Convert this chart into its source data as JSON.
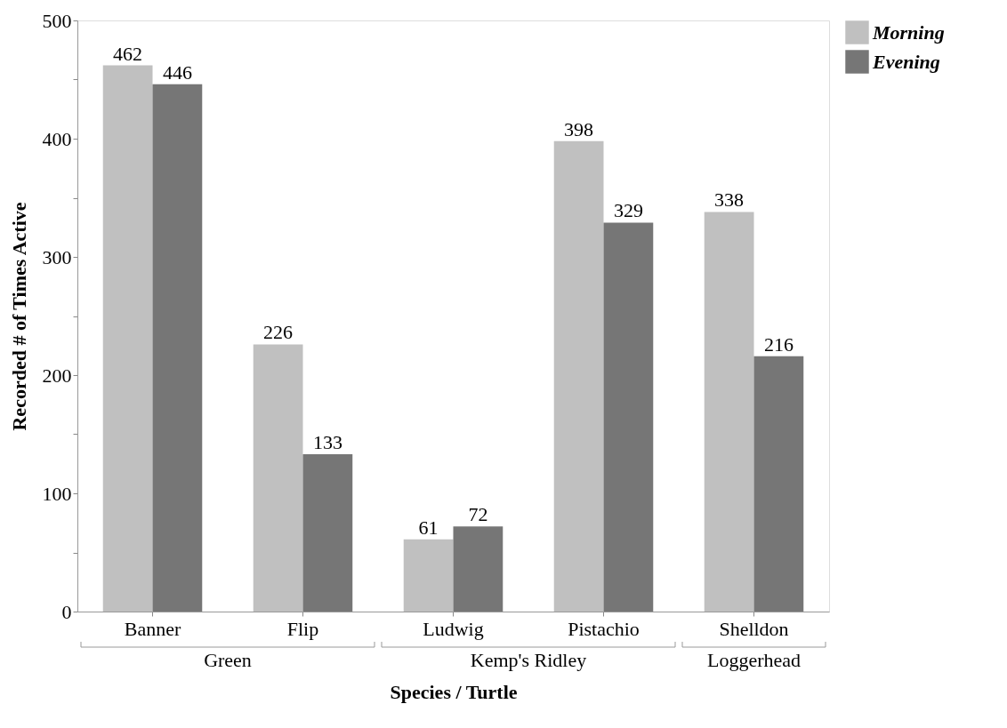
{
  "chart_data": {
    "type": "bar",
    "xlabel": "Species / Turtle",
    "ylabel": "Recorded # of Times Active",
    "categories": [
      "Banner",
      "Flip",
      "Ludwig",
      "Pistachio",
      "Shelldon"
    ],
    "series": [
      {
        "name": "Morning",
        "color": "#c0c0c0",
        "values": [
          462,
          226,
          61,
          398,
          338
        ]
      },
      {
        "name": "Evening",
        "color": "#767676",
        "values": [
          446,
          133,
          72,
          329,
          216
        ]
      }
    ],
    "ylim": [
      0,
      500
    ],
    "yticks": [
      0,
      {
        "value": 50,
        "label": null
      },
      100,
      {
        "value": 150,
        "label": null
      },
      200,
      {
        "value": 250,
        "label": null
      },
      300,
      {
        "value": 350,
        "label": null
      },
      400,
      {
        "value": 450,
        "label": null
      },
      500
    ],
    "data_labels": true,
    "grid": false,
    "legend": "top right",
    "annotations": [
      "Green",
      "Kemp's Ridley",
      "Loggerhead"
    ]
  }
}
